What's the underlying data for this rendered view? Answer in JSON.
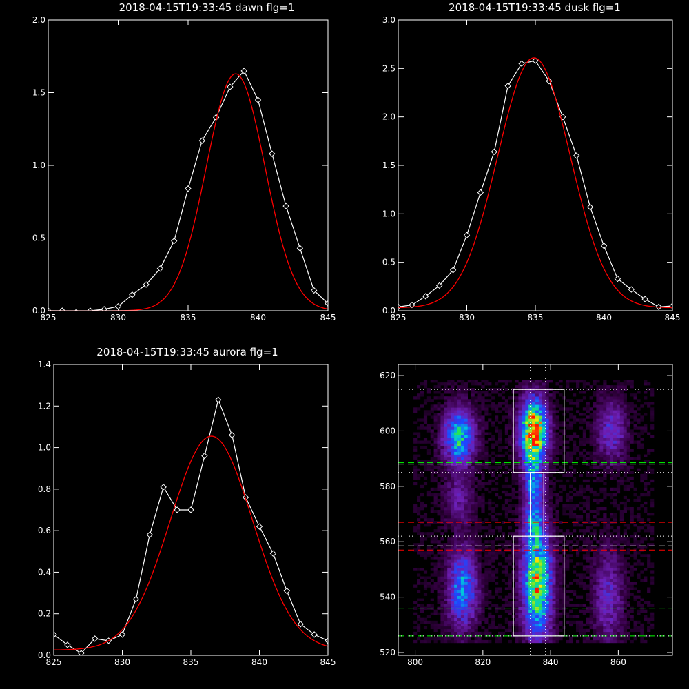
{
  "chart_data": [
    {
      "type": "line",
      "title": "2018-04-15T19:33:45 dawn flg=1",
      "xlim": [
        825,
        845
      ],
      "ylim": [
        0,
        2.0
      ],
      "xticks": [
        825,
        830,
        835,
        840,
        845
      ],
      "yticks": [
        0.0,
        0.5,
        1.0,
        1.5,
        2.0
      ],
      "ytick_labels": [
        "0.0",
        "0.5",
        "1.0",
        "1.5",
        "2.0"
      ],
      "xtick_labels": [
        "825",
        "830",
        "835",
        "840",
        "845"
      ],
      "series": [
        {
          "color": "#ffffff",
          "marker": "diamond",
          "x": [
            825,
            826,
            827,
            828,
            829,
            830,
            831,
            832,
            833,
            834,
            835,
            836,
            837,
            838,
            839,
            840,
            841,
            842,
            843,
            844,
            845
          ],
          "y": [
            0.0,
            0.0,
            -0.01,
            0.0,
            0.01,
            0.03,
            0.11,
            0.18,
            0.29,
            0.48,
            0.84,
            1.17,
            1.33,
            1.54,
            1.65,
            1.45,
            1.08,
            0.72,
            0.43,
            0.14,
            0.05
          ]
        },
        {
          "color": "#ff0000",
          "model": "gaussian",
          "amplitude": 1.63,
          "center": 838.4,
          "sigma": 2.1,
          "offset": 0.0
        }
      ]
    },
    {
      "type": "line",
      "title": "2018-04-15T19:33:45 dusk flg=1",
      "xlim": [
        825,
        845
      ],
      "ylim": [
        0,
        3.0
      ],
      "xticks": [
        825,
        830,
        835,
        840,
        845
      ],
      "yticks": [
        0.0,
        0.5,
        1.0,
        1.5,
        2.0,
        2.5,
        3.0
      ],
      "ytick_labels": [
        "0.0",
        "0.5",
        "1.0",
        "1.5",
        "2.0",
        "2.5",
        "3.0"
      ],
      "xtick_labels": [
        "825",
        "830",
        "835",
        "840",
        "845"
      ],
      "series": [
        {
          "color": "#ffffff",
          "marker": "diamond",
          "x": [
            825,
            826,
            827,
            828,
            829,
            830,
            831,
            832,
            833,
            834,
            835,
            836,
            837,
            838,
            839,
            840,
            841,
            842,
            843,
            844,
            845
          ],
          "y": [
            0.04,
            0.06,
            0.15,
            0.26,
            0.42,
            0.78,
            1.22,
            1.64,
            2.32,
            2.55,
            2.58,
            2.37,
            2.0,
            1.6,
            1.07,
            0.67,
            0.33,
            0.22,
            0.12,
            0.04,
            0.05
          ]
        },
        {
          "color": "#ff0000",
          "model": "gaussian",
          "amplitude": 2.58,
          "center": 834.9,
          "sigma": 2.65,
          "offset": 0.03
        }
      ]
    },
    {
      "type": "line",
      "title": "2018-04-15T19:33:45 aurora flg=1",
      "xlim": [
        825,
        845
      ],
      "ylim": [
        0,
        1.4
      ],
      "xticks": [
        825,
        830,
        835,
        840,
        845
      ],
      "yticks": [
        0.0,
        0.2,
        0.4,
        0.6,
        0.8,
        1.0,
        1.2,
        1.4
      ],
      "ytick_labels": [
        "0.0",
        "0.2",
        "0.4",
        "0.6",
        "0.8",
        "1.0",
        "1.2",
        "1.4"
      ],
      "xtick_labels": [
        "825",
        "830",
        "835",
        "840",
        "845"
      ],
      "series": [
        {
          "color": "#ffffff",
          "marker": "diamond",
          "x": [
            825,
            826,
            827,
            828,
            829,
            830,
            831,
            832,
            833,
            834,
            835,
            836,
            837,
            838,
            839,
            840,
            841,
            842,
            843,
            844,
            845
          ],
          "y": [
            0.1,
            0.05,
            0.01,
            0.08,
            0.07,
            0.1,
            0.27,
            0.58,
            0.81,
            0.7,
            0.7,
            0.96,
            1.23,
            1.06,
            0.76,
            0.62,
            0.49,
            0.31,
            0.15,
            0.1,
            0.07
          ]
        },
        {
          "color": "#ff0000",
          "model": "gaussian",
          "amplitude": 1.03,
          "center": 836.5,
          "sigma": 3.0,
          "offset": 0.025
        }
      ]
    },
    {
      "type": "heatmap",
      "title": "",
      "xlim": [
        795,
        876
      ],
      "ylim": [
        519,
        624
      ],
      "xticks": [
        800,
        820,
        840,
        860
      ],
      "yticks": [
        520,
        540,
        560,
        580,
        600,
        620
      ],
      "xtick_labels": [
        "800",
        "820",
        "840",
        "860"
      ],
      "ytick_labels": [
        "520",
        "540",
        "560",
        "580",
        "600",
        "620"
      ],
      "colormap": "purple-blue-green-yellow-red",
      "blobs": [
        {
          "x": 813,
          "y": 598,
          "sx": 3.2,
          "sy": 7,
          "amp": 0.62
        },
        {
          "x": 813,
          "y": 575,
          "sx": 3.0,
          "sy": 6,
          "amp": 0.22
        },
        {
          "x": 814,
          "y": 543,
          "sx": 3.0,
          "sy": 10,
          "amp": 0.5
        },
        {
          "x": 835,
          "y": 600,
          "sx": 2.8,
          "sy": 8,
          "amp": 1.0
        },
        {
          "x": 835,
          "y": 582,
          "sx": 2.0,
          "sy": 6,
          "amp": 0.4
        },
        {
          "x": 835,
          "y": 568,
          "sx": 2.0,
          "sy": 6,
          "amp": 0.35
        },
        {
          "x": 836,
          "y": 545,
          "sx": 3.0,
          "sy": 14,
          "amp": 0.8
        },
        {
          "x": 858,
          "y": 600,
          "sx": 3.0,
          "sy": 8,
          "amp": 0.3
        },
        {
          "x": 857,
          "y": 540,
          "sx": 3.0,
          "sy": 12,
          "amp": 0.28
        }
      ],
      "boxes": [
        {
          "x0": 829,
          "x1": 844,
          "y0": 585,
          "y1": 615,
          "color": "#ffffff"
        },
        {
          "x0": 829,
          "x1": 844,
          "y0": 526,
          "y1": 562,
          "color": "#ffffff"
        },
        {
          "x0": 834,
          "x1": 838,
          "y0": 562,
          "y1": 585,
          "color": "#ffffff"
        }
      ],
      "hlines": [
        {
          "y": 615,
          "color": "#ffffff",
          "style": "dotted"
        },
        {
          "y": 597.5,
          "color": "#00ff00",
          "style": "dashed"
        },
        {
          "y": 588.5,
          "color": "#00ff00",
          "style": "dashed"
        },
        {
          "y": 588,
          "color": "#ffffff",
          "style": "dashed"
        },
        {
          "y": 585,
          "color": "#ffffff",
          "style": "dotted"
        },
        {
          "y": 567,
          "color": "#ff0000",
          "style": "dashed"
        },
        {
          "y": 562,
          "color": "#ffffff",
          "style": "dotted"
        },
        {
          "y": 558.5,
          "color": "#ffffff",
          "style": "dashed"
        },
        {
          "y": 557,
          "color": "#ff0000",
          "style": "dashed"
        },
        {
          "y": 536,
          "color": "#00ff00",
          "style": "dashed"
        },
        {
          "y": 526,
          "color": "#00ff00",
          "style": "dashed"
        },
        {
          "y": 526,
          "color": "#ffffff",
          "style": "dotted"
        }
      ],
      "vlines": [
        {
          "x": 834,
          "color": "#ffffff",
          "style": "dotted"
        },
        {
          "x": 838.5,
          "color": "#ffffff",
          "style": "dotted"
        }
      ]
    }
  ]
}
